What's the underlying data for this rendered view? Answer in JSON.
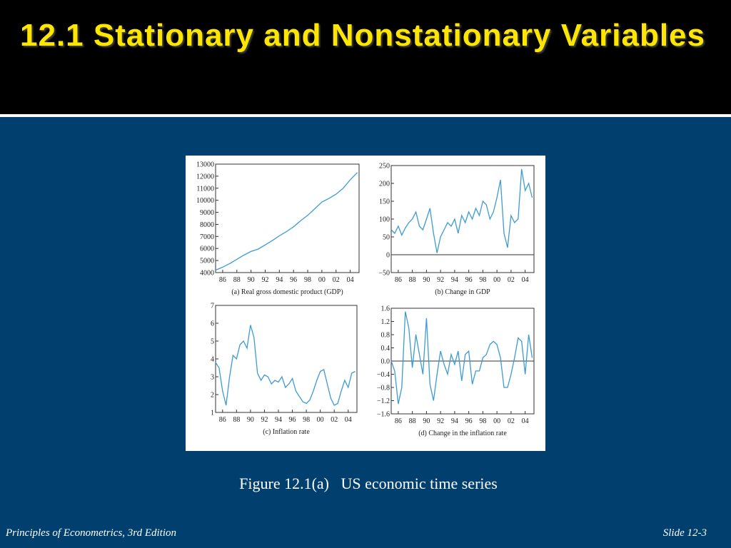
{
  "title": "12.1 Stationary and Nonstationary Variables",
  "caption": "Figure 12.1(a)   US economic time series",
  "footer_left": "Principles of Econometrics, 3rd Edition",
  "footer_right": "Slide 12-3",
  "chart_data": [
    {
      "type": "line",
      "subtitle": "(a) Real gross domestic product (GDP)",
      "color": "#3d9bd4",
      "x": [
        1985,
        1986,
        1987,
        1988,
        1989,
        1990,
        1991,
        1992,
        1993,
        1994,
        1995,
        1996,
        1997,
        1998,
        1999,
        2000,
        2001,
        2002,
        2003,
        2004,
        2005
      ],
      "values": [
        4200,
        4450,
        4750,
        5100,
        5450,
        5750,
        5950,
        6300,
        6650,
        7050,
        7400,
        7800,
        8300,
        8750,
        9300,
        9850,
        10150,
        10500,
        11000,
        11700,
        12300
      ],
      "xlim": [
        1985,
        2005.25
      ],
      "ylim": [
        4000,
        13000
      ],
      "xticks": [
        {
          "value": 1986,
          "label": "86"
        },
        {
          "value": 1988,
          "label": "88"
        },
        {
          "value": 1990,
          "label": "90"
        },
        {
          "value": 1992,
          "label": "92"
        },
        {
          "value": 1994,
          "label": "94"
        },
        {
          "value": 1996,
          "label": "96"
        },
        {
          "value": 1998,
          "label": "98"
        },
        {
          "value": 2000,
          "label": "00"
        },
        {
          "value": 2002,
          "label": "02"
        },
        {
          "value": 2004,
          "label": "04"
        }
      ],
      "yticks": [
        4000,
        5000,
        6000,
        7000,
        8000,
        9000,
        10000,
        11000,
        12000,
        13000
      ]
    },
    {
      "type": "line",
      "subtitle": "(b) Change in GDP",
      "color": "#3d9bd4",
      "reference_line": 0,
      "x": [
        1985,
        1985.5,
        1986,
        1986.5,
        1987,
        1987.5,
        1988,
        1988.5,
        1989,
        1989.5,
        1990,
        1990.5,
        1991,
        1991.5,
        1992,
        1992.5,
        1993,
        1993.5,
        1994,
        1994.5,
        1995,
        1995.5,
        1996,
        1996.5,
        1997,
        1997.5,
        1998,
        1998.5,
        1999,
        1999.5,
        2000,
        2000.5,
        2001,
        2001.5,
        2002,
        2002.5,
        2003,
        2003.5,
        2004,
        2004.5,
        2005
      ],
      "values": [
        70,
        60,
        80,
        55,
        75,
        90,
        100,
        120,
        80,
        70,
        100,
        130,
        60,
        5,
        50,
        70,
        90,
        80,
        100,
        60,
        110,
        90,
        120,
        100,
        130,
        110,
        150,
        140,
        100,
        120,
        160,
        210,
        60,
        20,
        110,
        90,
        100,
        240,
        180,
        200,
        160
      ],
      "xlim": [
        1985,
        2005.25
      ],
      "ylim": [
        -50,
        250
      ],
      "xticks": [
        {
          "value": 1986,
          "label": "86"
        },
        {
          "value": 1988,
          "label": "88"
        },
        {
          "value": 1990,
          "label": "90"
        },
        {
          "value": 1992,
          "label": "92"
        },
        {
          "value": 1994,
          "label": "94"
        },
        {
          "value": 1996,
          "label": "96"
        },
        {
          "value": 1998,
          "label": "98"
        },
        {
          "value": 2000,
          "label": "00"
        },
        {
          "value": 2002,
          "label": "02"
        },
        {
          "value": 2004,
          "label": "04"
        }
      ],
      "yticks": [
        {
          "value": -50,
          "label": "−50"
        },
        0,
        50,
        100,
        150,
        200,
        250
      ]
    },
    {
      "type": "line",
      "subtitle": "(c) Inflation rate",
      "color": "#3d9bd4",
      "x": [
        1985,
        1985.5,
        1986,
        1986.5,
        1987,
        1987.5,
        1988,
        1988.5,
        1989,
        1989.5,
        1990,
        1990.5,
        1991,
        1991.5,
        1992,
        1992.5,
        1993,
        1993.5,
        1994,
        1994.5,
        1995,
        1995.5,
        1996,
        1996.5,
        1997,
        1997.5,
        1998,
        1998.5,
        1999,
        1999.5,
        2000,
        2000.5,
        2001,
        2001.5,
        2002,
        2002.5,
        2003,
        2003.5,
        2004,
        2004.5,
        2005
      ],
      "values": [
        3.8,
        3.5,
        2.2,
        1.4,
        3.0,
        4.2,
        4.0,
        4.8,
        5.0,
        4.6,
        5.9,
        5.2,
        3.2,
        2.8,
        3.1,
        3.0,
        2.6,
        2.8,
        2.7,
        3.0,
        2.4,
        2.6,
        2.9,
        2.2,
        1.9,
        1.6,
        1.5,
        1.7,
        2.2,
        2.8,
        3.3,
        3.4,
        2.6,
        1.8,
        1.4,
        1.5,
        2.2,
        2.8,
        2.4,
        3.2,
        3.3
      ],
      "xlim": [
        1985,
        2005.25
      ],
      "ylim": [
        1,
        7
      ],
      "xticks": [
        {
          "value": 1986,
          "label": "86"
        },
        {
          "value": 1988,
          "label": "88"
        },
        {
          "value": 1990,
          "label": "90"
        },
        {
          "value": 1992,
          "label": "92"
        },
        {
          "value": 1994,
          "label": "94"
        },
        {
          "value": 1996,
          "label": "96"
        },
        {
          "value": 1998,
          "label": "98"
        },
        {
          "value": 2000,
          "label": "00"
        },
        {
          "value": 2002,
          "label": "02"
        },
        {
          "value": 2004,
          "label": "04"
        }
      ],
      "yticks": [
        1,
        2,
        3,
        4,
        5,
        6,
        7
      ]
    },
    {
      "type": "line",
      "subtitle": "(d) Change in the inflation rate",
      "color": "#3d9bd4",
      "reference_line": 0,
      "x": [
        1985,
        1985.5,
        1986,
        1986.5,
        1987,
        1987.5,
        1988,
        1988.5,
        1989,
        1989.5,
        1990,
        1990.5,
        1991,
        1991.5,
        1992,
        1992.5,
        1993,
        1993.5,
        1994,
        1994.5,
        1995,
        1995.5,
        1996,
        1996.5,
        1997,
        1997.5,
        1998,
        1998.5,
        1999,
        1999.5,
        2000,
        2000.5,
        2001,
        2001.5,
        2002,
        2002.5,
        2003,
        2003.5,
        2004,
        2004.5,
        2005
      ],
      "values": [
        0.0,
        -0.3,
        -1.3,
        -0.8,
        1.5,
        1.0,
        -0.2,
        0.8,
        0.2,
        -0.4,
        1.3,
        -0.7,
        -1.2,
        -0.4,
        0.3,
        -0.1,
        -0.4,
        0.2,
        -0.1,
        0.3,
        -0.6,
        0.2,
        0.3,
        -0.7,
        -0.3,
        -0.3,
        0.1,
        0.2,
        0.5,
        0.6,
        0.5,
        0.1,
        -0.8,
        -0.8,
        -0.4,
        0.1,
        0.7,
        0.6,
        -0.4,
        0.8,
        0.1
      ],
      "xlim": [
        1985,
        2005.25
      ],
      "ylim": [
        -1.6,
        1.6
      ],
      "xticks": [
        {
          "value": 1986,
          "label": "86"
        },
        {
          "value": 1988,
          "label": "88"
        },
        {
          "value": 1990,
          "label": "90"
        },
        {
          "value": 1992,
          "label": "92"
        },
        {
          "value": 1994,
          "label": "94"
        },
        {
          "value": 1996,
          "label": "96"
        },
        {
          "value": 1998,
          "label": "98"
        },
        {
          "value": 2000,
          "label": "00"
        },
        {
          "value": 2002,
          "label": "02"
        },
        {
          "value": 2004,
          "label": "04"
        }
      ],
      "yticks": [
        {
          "value": -1.6,
          "label": "−1.6"
        },
        {
          "value": -1.2,
          "label": "−1.2"
        },
        {
          "value": -0.8,
          "label": "−0.8"
        },
        {
          "value": -0.4,
          "label": "−0.4"
        },
        {
          "value": 0,
          "label": "0.0"
        },
        0.4,
        0.8,
        1.2,
        1.6
      ]
    }
  ]
}
